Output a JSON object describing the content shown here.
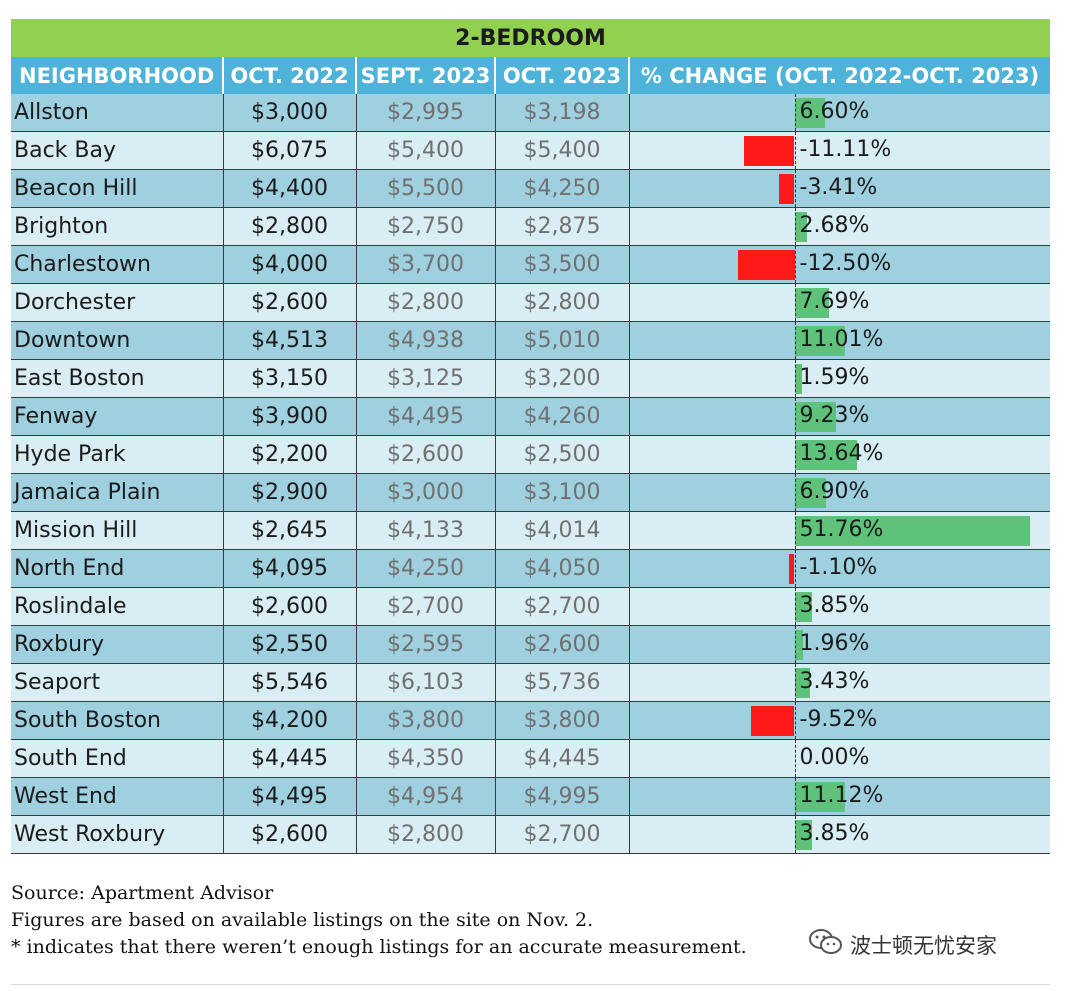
{
  "table_title": "2-BEDROOM",
  "columns": [
    "NEIGHBORHOOD",
    "OCT. 2022",
    "SEPT. 2023",
    "OCT. 2023",
    "% CHANGE (OCT. 2022-OCT. 2023)"
  ],
  "colors": {
    "title_bg": "#92d050",
    "header_bg": "#4eb3d8",
    "row_dark": "#9fd0df",
    "row_light": "#d8eef4",
    "positive_bar": "#5ec27a",
    "negative_bar": "#ff1a1a"
  },
  "chart_data": {
    "type": "table",
    "title": "2-BEDROOM",
    "columns": [
      "NEIGHBORHOOD",
      "OCT. 2022",
      "SEPT. 2023",
      "OCT. 2023",
      "% CHANGE (OCT. 2022-OCT. 2023)"
    ],
    "rows": [
      {
        "name": "Allston",
        "oct2022": "$3,000",
        "sep2023": "$2,995",
        "oct2023": "$3,198",
        "pct": "6.60%",
        "pct_value": 6.6
      },
      {
        "name": "Back Bay",
        "oct2022": "$6,075",
        "sep2023": "$5,400",
        "oct2023": "$5,400",
        "pct": "-11.11%",
        "pct_value": -11.11
      },
      {
        "name": "Beacon Hill",
        "oct2022": "$4,400",
        "sep2023": "$5,500",
        "oct2023": "$4,250",
        "pct": "-3.41%",
        "pct_value": -3.41
      },
      {
        "name": "Brighton",
        "oct2022": "$2,800",
        "sep2023": "$2,750",
        "oct2023": "$2,875",
        "pct": "2.68%",
        "pct_value": 2.68
      },
      {
        "name": "Charlestown",
        "oct2022": "$4,000",
        "sep2023": "$3,700",
        "oct2023": "$3,500",
        "pct": "-12.50%",
        "pct_value": -12.5
      },
      {
        "name": "Dorchester",
        "oct2022": "$2,600",
        "sep2023": "$2,800",
        "oct2023": "$2,800",
        "pct": "7.69%",
        "pct_value": 7.69
      },
      {
        "name": "Downtown",
        "oct2022": "$4,513",
        "sep2023": "$4,938",
        "oct2023": "$5,010",
        "pct": "11.01%",
        "pct_value": 11.01
      },
      {
        "name": "East Boston",
        "oct2022": "$3,150",
        "sep2023": "$3,125",
        "oct2023": "$3,200",
        "pct": "1.59%",
        "pct_value": 1.59
      },
      {
        "name": "Fenway",
        "oct2022": "$3,900",
        "sep2023": "$4,495",
        "oct2023": "$4,260",
        "pct": "9.23%",
        "pct_value": 9.23
      },
      {
        "name": "Hyde Park",
        "oct2022": "$2,200",
        "sep2023": "$2,600",
        "oct2023": "$2,500",
        "pct": "13.64%",
        "pct_value": 13.64
      },
      {
        "name": "Jamaica Plain",
        "oct2022": "$2,900",
        "sep2023": "$3,000",
        "oct2023": "$3,100",
        "pct": "6.90%",
        "pct_value": 6.9
      },
      {
        "name": "Mission Hill",
        "oct2022": "$2,645",
        "sep2023": "$4,133",
        "oct2023": "$4,014",
        "pct": "51.76%",
        "pct_value": 51.76
      },
      {
        "name": "North End",
        "oct2022": "$4,095",
        "sep2023": "$4,250",
        "oct2023": "$4,050",
        "pct": "-1.10%",
        "pct_value": -1.1
      },
      {
        "name": "Roslindale",
        "oct2022": "$2,600",
        "sep2023": "$2,700",
        "oct2023": "$2,700",
        "pct": "3.85%",
        "pct_value": 3.85
      },
      {
        "name": "Roxbury",
        "oct2022": "$2,550",
        "sep2023": "$2,595",
        "oct2023": "$2,600",
        "pct": "1.96%",
        "pct_value": 1.96
      },
      {
        "name": "Seaport",
        "oct2022": "$5,546",
        "sep2023": "$6,103",
        "oct2023": "$5,736",
        "pct": "3.43%",
        "pct_value": 3.43
      },
      {
        "name": "South Boston",
        "oct2022": "$4,200",
        "sep2023": "$3,800",
        "oct2023": "$3,800",
        "pct": "-9.52%",
        "pct_value": -9.52
      },
      {
        "name": "South End",
        "oct2022": "$4,445",
        "sep2023": "$4,350",
        "oct2023": "$4,445",
        "pct": "0.00%",
        "pct_value": 0.0
      },
      {
        "name": "West End",
        "oct2022": "$4,495",
        "sep2023": "$4,954",
        "oct2023": "$4,995",
        "pct": "11.12%",
        "pct_value": 11.12
      },
      {
        "name": "West Roxbury",
        "oct2022": "$2,600",
        "sep2023": "$2,800",
        "oct2023": "$2,700",
        "pct": "3.85%",
        "pct_value": 3.85
      }
    ]
  },
  "footnotes": {
    "source": "Source: Apartment Advisor",
    "note1": "Figures are based on available listings on the site on Nov. 2.",
    "note2": "* indicates that there weren’t enough listings for an accurate measurement."
  },
  "watermark": {
    "icon": "wechat-icon",
    "text": "波士顿无忧安家"
  }
}
